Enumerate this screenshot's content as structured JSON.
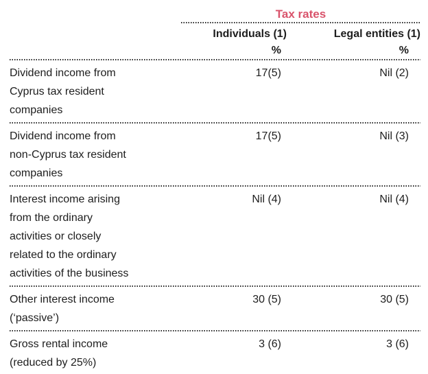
{
  "page": {
    "title": "Tax rates",
    "title_color": "#d9536b"
  },
  "table": {
    "column_headers": [
      {
        "label": "Individuals (1)",
        "unit": "%"
      },
      {
        "label": "Legal entities (1)",
        "unit": "%"
      }
    ],
    "rows": [
      {
        "label": "Dividend income from\nCyprus tax resident\ncompanies",
        "individuals": "17(5)",
        "legal_entities": "Nil (2)"
      },
      {
        "label": "Dividend income from\nnon-Cyprus tax resident\ncompanies",
        "individuals": "17(5)",
        "legal_entities": "Nil (3)"
      },
      {
        "label": "Interest income arising\nfrom the ordinary\nactivities or closely\nrelated to the ordinary\nactivities of the business",
        "individuals": "Nil (4)",
        "legal_entities": "Nil (4)"
      },
      {
        "label": "Other interest income\n(‘passive’)",
        "individuals": "30 (5)",
        "legal_entities": "30 (5)"
      },
      {
        "label": "Gross rental income\n(reduced by 25%)",
        "individuals": "3 (6)",
        "legal_entities": "3 (6)"
      }
    ]
  }
}
